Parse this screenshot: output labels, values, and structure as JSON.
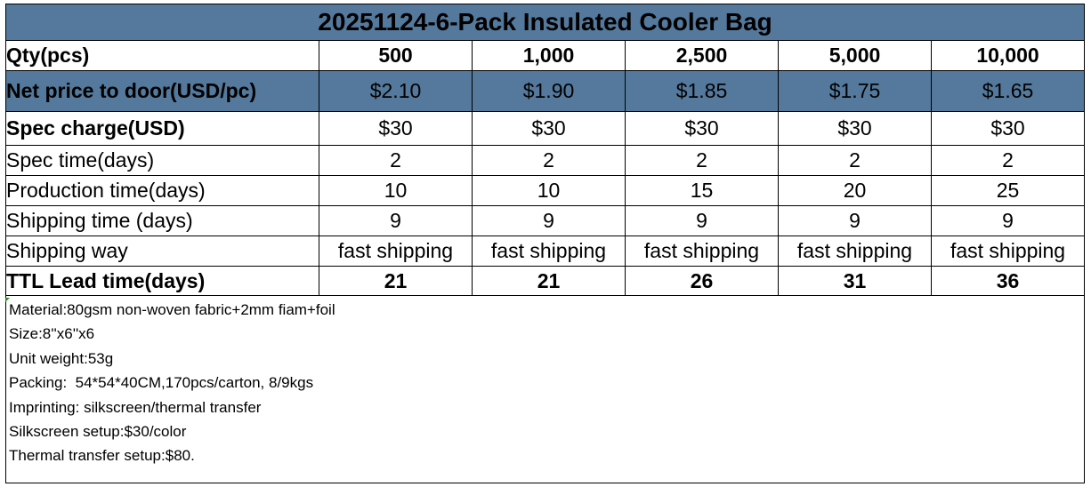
{
  "title": "20251124-6-Pack Insulated Cooler Bag",
  "rows": {
    "qty": {
      "label": "Qty(pcs)",
      "values": [
        "500",
        "1,000",
        "2,500",
        "5,000",
        "10,000"
      ]
    },
    "price": {
      "label": "Net price to door(USD/pc)",
      "values": [
        "$2.10",
        "$1.90",
        "$1.85",
        "$1.75",
        "$1.65"
      ]
    },
    "spec_charge": {
      "label": "Spec charge(USD)",
      "values": [
        "$30",
        "$30",
        "$30",
        "$30",
        "$30"
      ]
    },
    "spec_time": {
      "label": "Spec time(days)",
      "values": [
        "2",
        "2",
        "2",
        "2",
        "2"
      ]
    },
    "production_time": {
      "label": "Production time(days)",
      "values": [
        "10",
        "10",
        "15",
        "20",
        "25"
      ]
    },
    "shipping_time": {
      "label": "Shipping time (days)",
      "values": [
        "9",
        "9",
        "9",
        "9",
        "9"
      ]
    },
    "shipping_way": {
      "label": "Shipping way",
      "values": [
        "fast shipping",
        "fast shipping",
        "fast shipping",
        "fast shipping",
        "fast shipping"
      ]
    },
    "lead_time": {
      "label": "TTL Lead time(days)",
      "values": [
        "21",
        "21",
        "26",
        "31",
        "36"
      ]
    }
  },
  "notes": [
    "Material:80gsm non-woven fabric+2mm fiam+foil",
    "Size:8''x6''x6",
    "Unit weight:53g",
    "Packing:  54*54*40CM,170pcs/carton, 8/9kgs",
    "Imprinting: silkscreen/thermal transfer",
    "Silkscreen setup:$30/color",
    "Thermal transfer setup:$80."
  ],
  "colors": {
    "header_fill": "#54799c",
    "border": "#000000",
    "cell_marker": "#2e8b2e"
  }
}
